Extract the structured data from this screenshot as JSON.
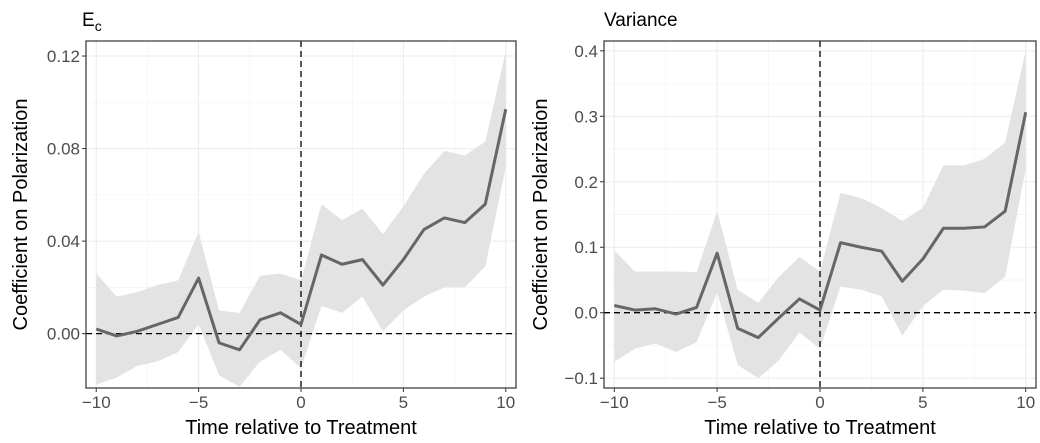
{
  "chart_data": [
    {
      "type": "line",
      "title": "E",
      "title_subscript": "c",
      "xlabel": "Time relative to Treatment",
      "ylabel": "Coefficient on Polarization",
      "xlim": [
        -10.5,
        10.5
      ],
      "ylim": [
        -0.0235,
        0.1265
      ],
      "xticks": [
        -10,
        -5,
        0,
        5,
        10
      ],
      "xtick_labels": [
        "−10",
        "−5",
        "0",
        "5",
        "10"
      ],
      "yticks": [
        0.0,
        0.04,
        0.08,
        0.12
      ],
      "ytick_labels": [
        "0.00",
        "0.04",
        "0.08",
        "0.12"
      ],
      "grid": true,
      "reference_lines": {
        "horizontal": 0,
        "vertical": 0,
        "style": "dashed"
      },
      "series": [
        {
          "type": "line-with-ribbon",
          "color": "#666666",
          "ribbon_color": "#e3e3e3",
          "x": [
            -10,
            -9,
            -8,
            -7,
            -6,
            -5,
            -4,
            -3,
            -2,
            -1,
            0,
            1,
            2,
            3,
            4,
            5,
            6,
            7,
            8,
            9,
            10
          ],
          "y": [
            0.002,
            -0.001,
            0.001,
            0.004,
            0.007,
            0.024,
            -0.004,
            -0.007,
            0.006,
            0.009,
            0.004,
            0.034,
            0.03,
            0.032,
            0.021,
            0.032,
            0.045,
            0.05,
            0.048,
            0.056,
            0.097
          ],
          "lower": [
            -0.022,
            -0.019,
            -0.014,
            -0.012,
            -0.008,
            0.004,
            -0.018,
            -0.023,
            -0.012,
            -0.007,
            -0.015,
            0.012,
            0.009,
            0.016,
            0.001,
            0.01,
            0.016,
            0.02,
            0.02,
            0.029,
            0.072
          ],
          "upper": [
            0.026,
            0.016,
            0.018,
            0.021,
            0.023,
            0.044,
            0.01,
            0.009,
            0.025,
            0.026,
            0.023,
            0.056,
            0.049,
            0.054,
            0.043,
            0.055,
            0.069,
            0.079,
            0.077,
            0.083,
            0.122
          ]
        }
      ]
    },
    {
      "type": "line",
      "title": "Variance",
      "xlabel": "Time relative to Treatment",
      "ylabel": "Coefficient on Polarization",
      "xlim": [
        -10.5,
        10.5
      ],
      "ylim": [
        -0.115,
        0.415
      ],
      "xticks": [
        -10,
        -5,
        0,
        5,
        10
      ],
      "xtick_labels": [
        "−10",
        "−5",
        "0",
        "5",
        "10"
      ],
      "yticks": [
        -0.1,
        0.0,
        0.1,
        0.2,
        0.3,
        0.4
      ],
      "ytick_labels": [
        "−0.1",
        "0.0",
        "0.1",
        "0.2",
        "0.3",
        "0.4"
      ],
      "grid": true,
      "reference_lines": {
        "horizontal": 0,
        "vertical": 0,
        "style": "dashed"
      },
      "series": [
        {
          "type": "line-with-ribbon",
          "color": "#666666",
          "ribbon_color": "#e3e3e3",
          "x": [
            -10,
            -9,
            -8,
            -7,
            -6,
            -5,
            -4,
            -3,
            -2,
            -1,
            0,
            1,
            2,
            3,
            4,
            5,
            6,
            7,
            8,
            9,
            10
          ],
          "y": [
            0.011,
            0.004,
            0.006,
            -0.002,
            0.008,
            0.091,
            -0.024,
            -0.038,
            -0.008,
            0.021,
            0.004,
            0.107,
            0.1,
            0.094,
            0.048,
            0.082,
            0.129,
            0.129,
            0.131,
            0.155,
            0.306
          ],
          "lower": [
            -0.075,
            -0.055,
            -0.047,
            -0.06,
            -0.045,
            0.031,
            -0.08,
            -0.1,
            -0.073,
            -0.03,
            -0.055,
            0.04,
            0.035,
            0.025,
            -0.035,
            0.01,
            0.035,
            0.034,
            0.03,
            0.055,
            0.22
          ],
          "upper": [
            0.095,
            0.063,
            0.063,
            0.063,
            0.062,
            0.155,
            0.035,
            0.015,
            0.055,
            0.085,
            0.063,
            0.183,
            0.175,
            0.16,
            0.14,
            0.16,
            0.225,
            0.225,
            0.235,
            0.26,
            0.4
          ]
        }
      ]
    }
  ]
}
